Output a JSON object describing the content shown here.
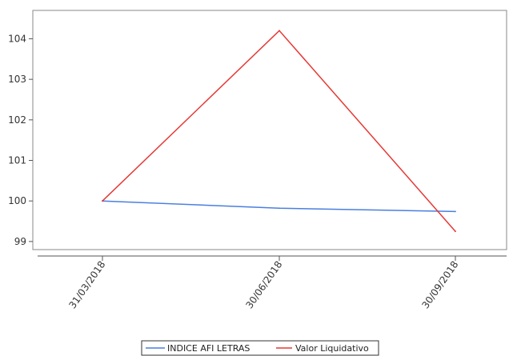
{
  "chart_data": {
    "type": "line",
    "categories": [
      "31/03/2018",
      "30/06/2018",
      "30/09/2018"
    ],
    "series": [
      {
        "name": "INDICE AFI LETRAS",
        "color": "#4a7fe0",
        "values": [
          100.0,
          99.82,
          99.74
        ]
      },
      {
        "name": "Valor Liquidativo",
        "color": "#e53935",
        "values": [
          100.0,
          104.2,
          99.25
        ]
      }
    ],
    "ylim": [
      98.8,
      104.7
    ],
    "yticks": [
      "99",
      "100",
      "101",
      "102",
      "103",
      "104"
    ],
    "title": "",
    "xlabel": "",
    "ylabel": "",
    "grid": false,
    "legend_position": "bottom-center"
  }
}
